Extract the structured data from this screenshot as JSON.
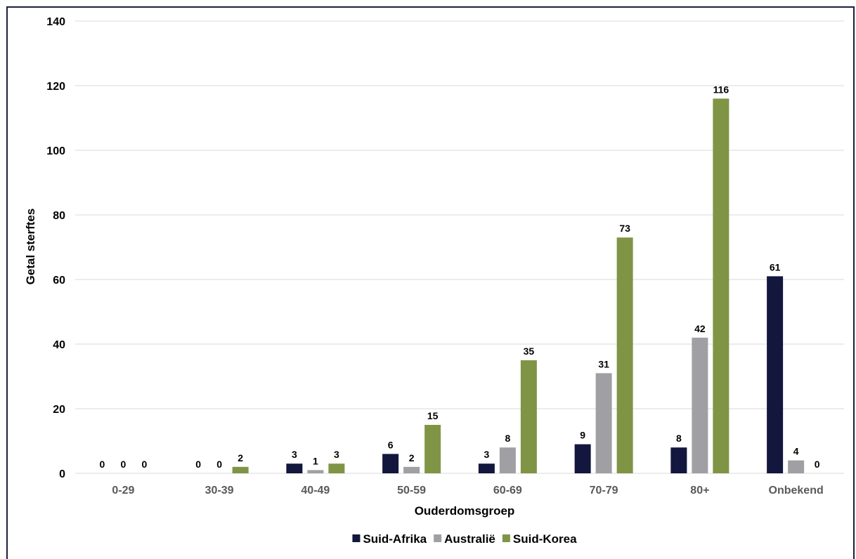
{
  "chart_data": {
    "type": "bar",
    "categories": [
      "0-29",
      "30-39",
      "40-49",
      "50-59",
      "60-69",
      "70-79",
      "80+",
      "Onbekend"
    ],
    "series": [
      {
        "name": "Suid-Afrika",
        "values": [
          0,
          0,
          3,
          6,
          3,
          9,
          8,
          61
        ],
        "color": "#13163d"
      },
      {
        "name": "Australië",
        "values": [
          0,
          0,
          1,
          2,
          8,
          31,
          42,
          4
        ],
        "color": "#a0a0a4"
      },
      {
        "name": "Suid-Korea",
        "values": [
          0,
          2,
          3,
          15,
          35,
          73,
          116,
          0
        ],
        "color": "#7f9545"
      }
    ],
    "title": "",
    "xlabel": "Ouderdomsgroep",
    "ylabel": "Getal sterftes",
    "ylim": [
      0,
      140
    ],
    "yticks": [
      0,
      20,
      40,
      60,
      80,
      100,
      120,
      140
    ],
    "grid": true,
    "legend": "bottom-center",
    "colors": {
      "ytick_text": "#000000",
      "xtick_text": "#595959",
      "gridline": "#d9d9d9",
      "frame": "#1b1f3b"
    }
  }
}
